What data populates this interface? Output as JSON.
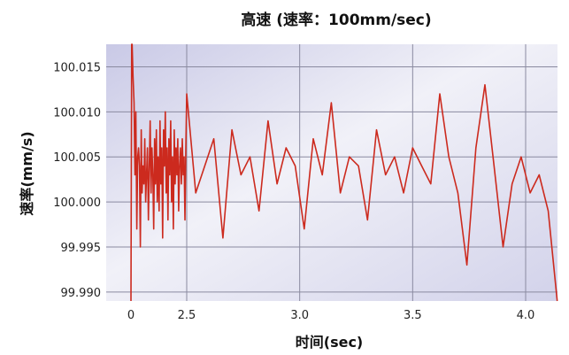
{
  "chart_data": {
    "type": "line",
    "title": "高速 (速率：100mm/sec)",
    "xlabel": "时间(sec)",
    "ylabel": "速率(mm/s)",
    "xlim": [
      0,
      4.15
    ],
    "ylim": [
      99.989,
      100.0175
    ],
    "x_ticks": [
      {
        "value": 0,
        "label": "0"
      },
      {
        "value": 2.5,
        "label": "2.5"
      },
      {
        "value": 3.0,
        "label": "3.0"
      },
      {
        "value": 3.5,
        "label": "3.5"
      },
      {
        "value": 4.0,
        "label": "4.0"
      }
    ],
    "y_ticks": [
      {
        "value": 100.015,
        "label": "100.015"
      },
      {
        "value": 100.01,
        "label": "100.010"
      },
      {
        "value": 100.005,
        "label": "100.005"
      },
      {
        "value": 100.0,
        "label": "100.000"
      },
      {
        "value": 99.995,
        "label": "99.995"
      },
      {
        "value": 99.99,
        "label": "99.990"
      }
    ],
    "grid": true,
    "series": [
      {
        "color": "#cc2a1e",
        "x": [
          0,
          0.03,
          0.05,
          0.09,
          0.14,
          0.18,
          0.22,
          0.26,
          0.3,
          0.34,
          0.38,
          0.42,
          0.46,
          0.5,
          0.54,
          0.58,
          0.62,
          0.66,
          0.7,
          0.74,
          0.78,
          0.82,
          0.86,
          0.9,
          0.94,
          0.98,
          1.02,
          1.06,
          1.1,
          1.14,
          1.18,
          1.22,
          1.26,
          1.3,
          1.34,
          1.38,
          1.42,
          1.46,
          1.5,
          1.54,
          1.58,
          1.62,
          1.66,
          1.7,
          1.74,
          1.78,
          1.82,
          1.86,
          1.9,
          1.94,
          1.98,
          2.02,
          2.06,
          2.1,
          2.14,
          2.18,
          2.22,
          2.26,
          2.3,
          2.34,
          2.38,
          2.42,
          2.46,
          2.5,
          2.54,
          2.58,
          2.62,
          2.66,
          2.7,
          2.74,
          2.78,
          2.82,
          2.86,
          2.9,
          2.94,
          2.98,
          3.02,
          3.06,
          3.1,
          3.14,
          3.18,
          3.22,
          3.26,
          3.3,
          3.34,
          3.38,
          3.42,
          3.46,
          3.5,
          3.54,
          3.58,
          3.62,
          3.66,
          3.7,
          3.74,
          3.78,
          3.82,
          3.86,
          3.9,
          3.94,
          3.98,
          4.02,
          4.06,
          4.1,
          4.14
        ],
        "values": [
          99.989,
          100.0175,
          100.0175,
          100.014,
          100.011,
          100.003,
          100.01,
          99.997,
          100.005,
          100.006,
          100.004,
          99.995,
          100.008,
          100.001,
          100.004,
          100.002,
          100.007,
          100.0,
          100.003,
          100.006,
          99.998,
          100.004,
          100.009,
          100.001,
          100.006,
          100.003,
          99.997,
          100.007,
          100.002,
          100.008,
          100.0,
          100.005,
          99.999,
          100.009,
          100.002,
          100.006,
          99.996,
          100.008,
          100.004,
          100.01,
          100.001,
          100.006,
          99.998,
          100.007,
          100.003,
          100.009,
          100.0,
          100.005,
          99.997,
          100.008,
          100.002,
          100.006,
          100.003,
          100.007,
          99.999,
          100.004,
          100.006,
          100.002,
          100.007,
          100.003,
          100.005,
          99.998,
          100.006,
          100.012,
          100.001,
          100.004,
          100.007,
          99.996,
          100.008,
          100.003,
          100.005,
          99.999,
          100.009,
          100.002,
          100.006,
          100.004,
          99.997,
          100.007,
          100.003,
          100.011,
          100.001,
          100.005,
          100.004,
          99.998,
          100.008,
          100.003,
          100.005,
          100.001,
          100.006,
          100.004,
          100.002,
          100.012,
          100.005,
          100.001,
          99.993,
          100.006,
          100.013,
          100.004,
          99.995,
          100.002,
          100.005,
          100.001,
          100.003,
          99.999,
          99.989
        ]
      }
    ]
  }
}
